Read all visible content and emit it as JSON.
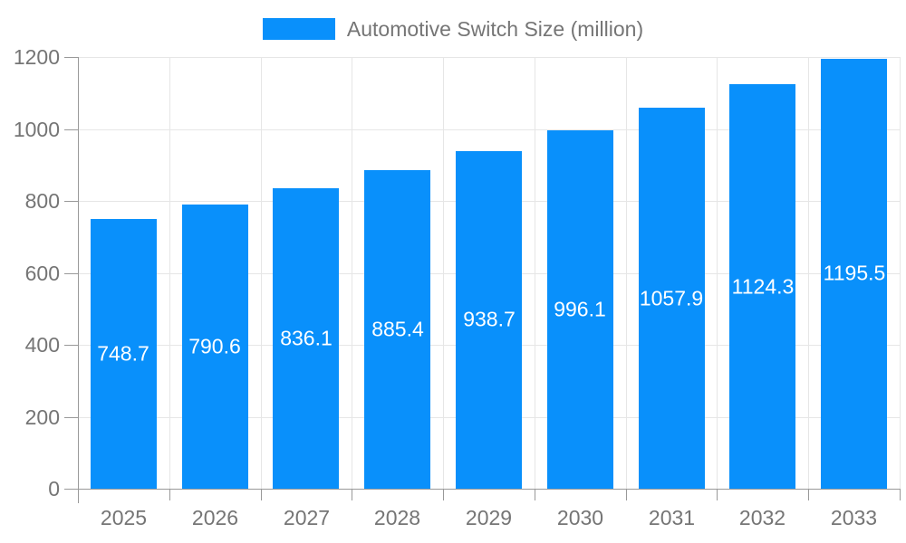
{
  "legend": {
    "label": "Automotive Switch Size (million)",
    "swatch_color": "#0990FB"
  },
  "chart_data": {
    "type": "bar",
    "title": "Automotive Switch Size (million)",
    "categories": [
      "2025",
      "2026",
      "2027",
      "2028",
      "2029",
      "2030",
      "2031",
      "2032",
      "2033"
    ],
    "values": [
      748.7,
      790.6,
      836.1,
      885.4,
      938.7,
      996.1,
      1057.9,
      1124.3,
      1195.5
    ],
    "value_labels": [
      "748.7",
      "790.6",
      "836.1",
      "885.4",
      "938.7",
      "996.1",
      "1057.9",
      "1124.3",
      "1195.5"
    ],
    "xlabel": "",
    "ylabel": "",
    "ylim": [
      0,
      1200
    ],
    "yticks": [
      0,
      200,
      400,
      600,
      800,
      1000,
      1200
    ],
    "grid": true,
    "legend_position": "top",
    "bar_color": "#0990FB",
    "bar_label_color": "#ffffff",
    "axis_text_color": "#757575",
    "grid_color": "#e6e6e6",
    "axis_line_color": "#999999"
  }
}
